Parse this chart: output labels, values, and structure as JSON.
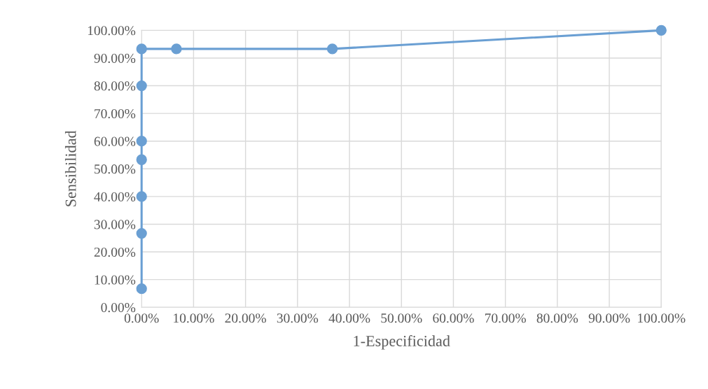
{
  "chart_data": {
    "type": "line",
    "xlabel": "1-Especificidad",
    "ylabel": "Sensibilidad",
    "x": [
      0,
      0,
      0,
      0,
      0,
      0,
      0,
      6.7,
      36.7,
      100
    ],
    "series": [
      {
        "color": "#6a9fd3",
        "values": [
          6.7,
          26.7,
          40,
          53.3,
          60,
          80,
          93.3,
          93.3,
          93.3,
          100
        ]
      }
    ],
    "marker": "circle",
    "line_style": "solid",
    "grid": true,
    "xlim": [
      0,
      100
    ],
    "ylim": [
      0,
      100
    ],
    "xticks": [
      {
        "value": 0,
        "label": "0.00%"
      },
      {
        "value": 10,
        "label": "10.00%"
      },
      {
        "value": 20,
        "label": "20.00%"
      },
      {
        "value": 30,
        "label": "30.00%"
      },
      {
        "value": 40,
        "label": "40.00%"
      },
      {
        "value": 50,
        "label": "50.00%"
      },
      {
        "value": 60,
        "label": "60.00%"
      },
      {
        "value": 70,
        "label": "70.00%"
      },
      {
        "value": 80,
        "label": "80.00%"
      },
      {
        "value": 90,
        "label": "90.00%"
      },
      {
        "value": 100,
        "label": "100.00%"
      }
    ],
    "yticks": [
      {
        "value": 0,
        "label": "0.00%"
      },
      {
        "value": 10,
        "label": "10.00%"
      },
      {
        "value": 20,
        "label": "20.00%"
      },
      {
        "value": 30,
        "label": "30.00%"
      },
      {
        "value": 40,
        "label": "40.00%"
      },
      {
        "value": 50,
        "label": "50.00%"
      },
      {
        "value": 60,
        "label": "60.00%"
      },
      {
        "value": 70,
        "label": "70.00%"
      },
      {
        "value": 80,
        "label": "80.00%"
      },
      {
        "value": 90,
        "label": "90.00%"
      },
      {
        "value": 100,
        "label": "100.00%"
      }
    ]
  }
}
